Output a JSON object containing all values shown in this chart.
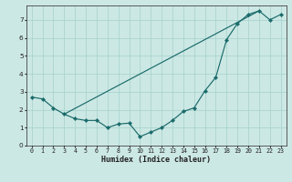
{
  "title": "",
  "xlabel": "Humidex (Indice chaleur)",
  "background_color": "#cce8e4",
  "line_color": "#1a6b6b",
  "grid_color": "#aad4cf",
  "xlim": [
    -0.5,
    23.5
  ],
  "ylim": [
    0,
    7.8
  ],
  "yticks": [
    0,
    1,
    2,
    3,
    4,
    5,
    6,
    7
  ],
  "xticks": [
    0,
    1,
    2,
    3,
    4,
    5,
    6,
    7,
    8,
    9,
    10,
    11,
    12,
    13,
    14,
    15,
    16,
    17,
    18,
    19,
    20,
    21,
    22,
    23
  ],
  "series1_x": [
    0,
    1,
    2,
    3,
    4,
    5,
    6,
    7,
    8,
    9,
    10,
    11,
    12,
    13,
    14,
    15,
    16,
    17,
    18,
    19,
    20,
    21,
    22,
    23
  ],
  "series1_y": [
    2.7,
    2.6,
    2.1,
    1.75,
    1.5,
    1.4,
    1.4,
    1.0,
    1.2,
    1.25,
    0.5,
    0.75,
    1.0,
    1.4,
    1.9,
    2.1,
    3.05,
    3.8,
    5.9,
    6.8,
    7.3,
    7.5,
    7.0,
    7.3
  ],
  "series2_x": [
    3,
    21
  ],
  "series2_y": [
    1.75,
    7.5
  ]
}
